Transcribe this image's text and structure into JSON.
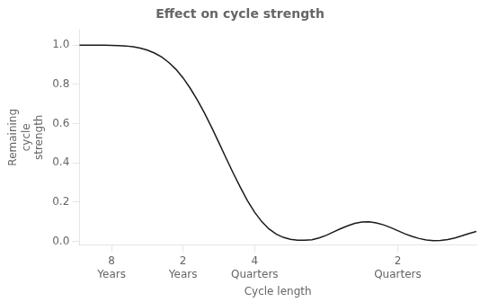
{
  "chart_data": {
    "type": "line",
    "title": "Effect on cycle strength",
    "xlabel": "Cycle length",
    "ylabel": "Remaining\ncycle\nstrength",
    "x": [
      0.55,
      0.6,
      0.7,
      0.8,
      0.9,
      1.0,
      1.1,
      1.2,
      1.3,
      1.4,
      1.5,
      1.6,
      1.7,
      1.8,
      1.9,
      2.0,
      2.1,
      2.2,
      2.3,
      2.4,
      2.5,
      2.6,
      2.7,
      2.8,
      2.9,
      3.0,
      3.1,
      3.2,
      3.3,
      3.4,
      3.5,
      3.6,
      3.7,
      3.8,
      3.9,
      4.0,
      4.1,
      4.2,
      4.3,
      4.4,
      4.5,
      4.6,
      4.7,
      4.8,
      4.9,
      5.0,
      5.1,
      5.2,
      5.3,
      5.4,
      5.5,
      5.6,
      5.7,
      5.8,
      5.9,
      6.0,
      6.1
    ],
    "values": [
      1.0,
      1.0,
      1.0,
      1.0,
      1.0,
      0.999,
      0.998,
      0.996,
      0.992,
      0.985,
      0.975,
      0.96,
      0.94,
      0.912,
      0.877,
      0.833,
      0.78,
      0.72,
      0.653,
      0.58,
      0.503,
      0.425,
      0.348,
      0.275,
      0.207,
      0.148,
      0.1,
      0.063,
      0.037,
      0.02,
      0.01,
      0.005,
      0.005,
      0.008,
      0.017,
      0.03,
      0.047,
      0.064,
      0.079,
      0.091,
      0.098,
      0.099,
      0.094,
      0.084,
      0.07,
      0.054,
      0.038,
      0.025,
      0.014,
      0.007,
      0.003,
      0.004,
      0.009,
      0.017,
      0.028,
      0.04,
      0.05
    ],
    "color": "#1a1a1a",
    "xlim": [
      0.55,
      6.1
    ],
    "xticks": [
      {
        "value": 1,
        "label": "8\nYears"
      },
      {
        "value": 2,
        "label": "2\nYears"
      },
      {
        "value": 3,
        "label": "4\nQuarters"
      },
      {
        "value": 5,
        "label": "2\nQuarters"
      }
    ],
    "ylim": [
      -0.02,
      1.08
    ],
    "yticks": [
      {
        "value": 0.0,
        "label": "0.0"
      },
      0.2,
      0.4,
      0.6,
      0.8,
      {
        "value": 1.0,
        "label": "1.0"
      }
    ],
    "grid": false
  }
}
